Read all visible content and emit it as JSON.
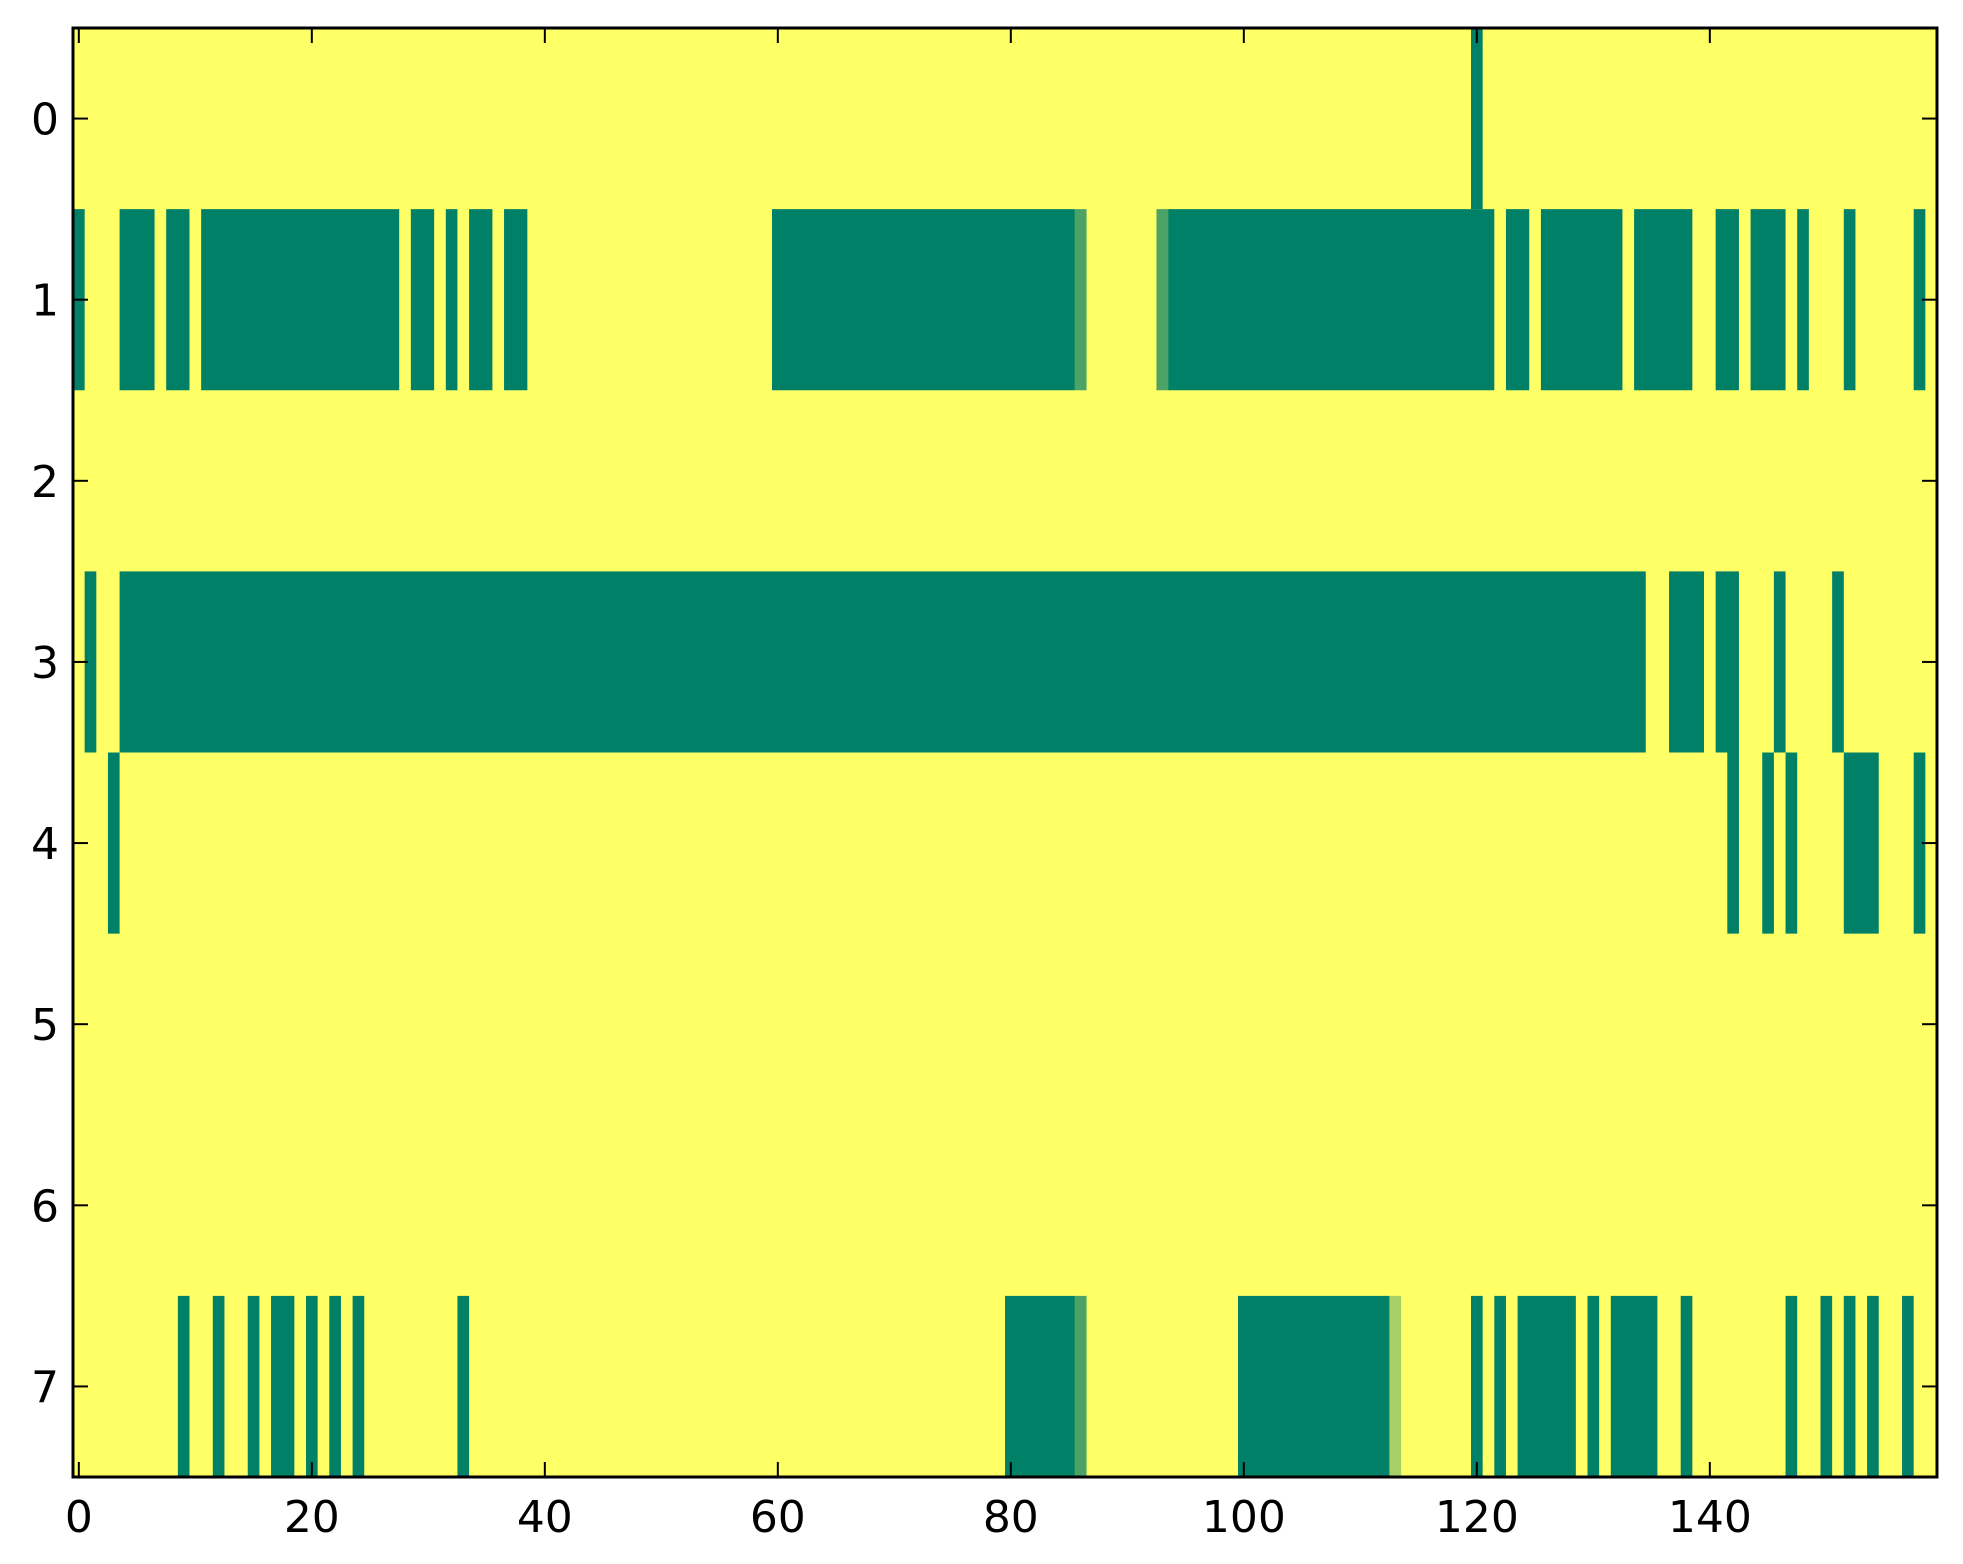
{
  "chart_data": {
    "type": "heatmap",
    "title": "",
    "xlabel": "",
    "ylabel": "",
    "xlim": [
      -0.5,
      159.5
    ],
    "ylim": [
      7.5,
      -0.5
    ],
    "grid": false,
    "x_ticks": [
      0,
      20,
      40,
      60,
      80,
      100,
      120,
      140
    ],
    "x_tick_labels": [
      "0",
      "20",
      "40",
      "60",
      "80",
      "100",
      "120",
      "140"
    ],
    "y_ticks": [
      0,
      1,
      2,
      3,
      4,
      5,
      6,
      7
    ],
    "y_tick_labels": [
      "0",
      "1",
      "2",
      "3",
      "4",
      "5",
      "6",
      "7"
    ],
    "colors": {
      "background": "#ffff66",
      "on": "#008066",
      "mid": "#4da366",
      "light": "#a6d166"
    },
    "rows": [
      {
        "row": 0,
        "segments": [
          [
            120,
            120
          ]
        ]
      },
      {
        "row": 1,
        "segments": [
          [
            0,
            0
          ],
          [
            4,
            6
          ],
          [
            8,
            9
          ],
          [
            11,
            27
          ],
          [
            29,
            30
          ],
          [
            32,
            32
          ],
          [
            34,
            35
          ],
          [
            37,
            38
          ],
          [
            60,
            85
          ],
          [
            94,
            121
          ],
          [
            123,
            124
          ],
          [
            126,
            132
          ],
          [
            134,
            138
          ],
          [
            141,
            142
          ],
          [
            144,
            146
          ],
          [
            148,
            148
          ],
          [
            152,
            152
          ],
          [
            158,
            158
          ]
        ],
        "mid_cells": [
          86,
          93
        ]
      },
      {
        "row": 2,
        "segments": []
      },
      {
        "row": 3,
        "segments": [
          [
            1,
            1
          ],
          [
            4,
            134
          ],
          [
            137,
            139
          ],
          [
            141,
            142
          ],
          [
            146,
            146
          ],
          [
            151,
            151
          ]
        ]
      },
      {
        "row": 4,
        "segments": [
          [
            3,
            3
          ],
          [
            142,
            142
          ],
          [
            145,
            145
          ],
          [
            147,
            147
          ],
          [
            152,
            154
          ],
          [
            158,
            158
          ]
        ]
      },
      {
        "row": 5,
        "segments": []
      },
      {
        "row": 6,
        "segments": []
      },
      {
        "row": 7,
        "segments": [
          [
            9,
            9
          ],
          [
            12,
            12
          ],
          [
            15,
            15
          ],
          [
            17,
            18
          ],
          [
            20,
            20
          ],
          [
            22,
            22
          ],
          [
            24,
            24
          ],
          [
            33,
            33
          ],
          [
            80,
            85
          ],
          [
            100,
            112
          ],
          [
            120,
            120
          ],
          [
            122,
            122
          ],
          [
            124,
            128
          ],
          [
            130,
            130
          ],
          [
            132,
            135
          ],
          [
            138,
            138
          ],
          [
            147,
            147
          ],
          [
            150,
            150
          ],
          [
            152,
            152
          ],
          [
            154,
            154
          ],
          [
            157,
            157
          ]
        ],
        "mid_cells": [
          86
        ],
        "light_cells": [
          113
        ]
      }
    ]
  }
}
